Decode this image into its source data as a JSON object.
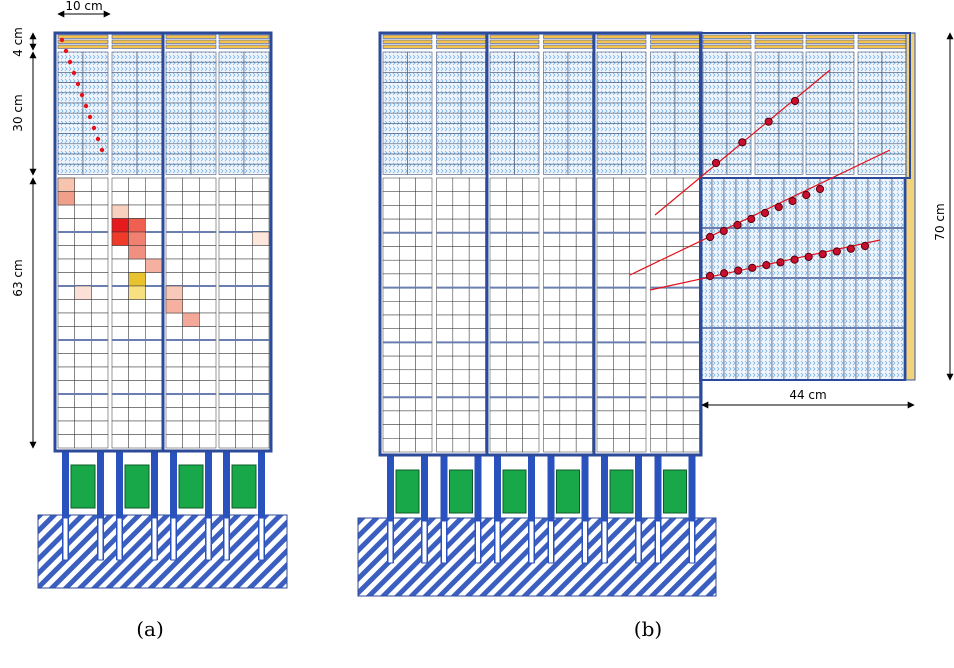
{
  "panel_a": {
    "caption": "(a)",
    "width_label": "10 cm",
    "top_label": "4 cm",
    "upper_label": "30 cm",
    "lower_label": "63 cm"
  },
  "panel_b": {
    "caption": "(b)",
    "width_label": "44 cm",
    "height_label": "70 cm"
  }
}
